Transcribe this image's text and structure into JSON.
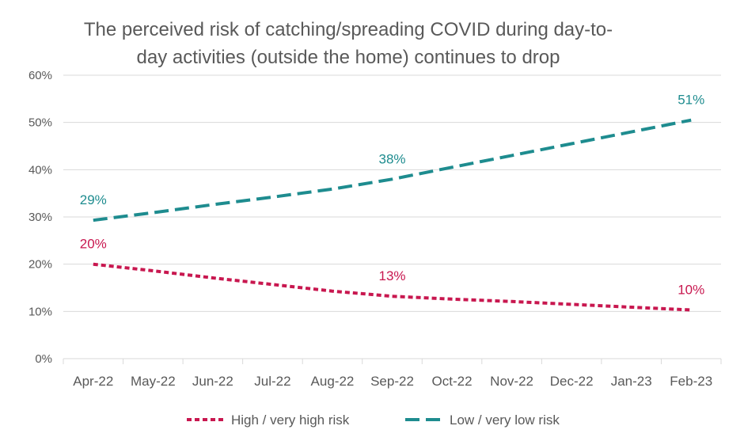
{
  "chart_data": {
    "type": "line",
    "title": "The perceived risk of catching/spreading COVID during day-to-day activities (outside the home) continues to drop",
    "title_lines": [
      "The perceived risk of catching/spreading COVID during day-to-",
      "day activities (outside the home) continues to drop"
    ],
    "categories": [
      "Apr-22",
      "May-22",
      "Jun-22",
      "Jul-22",
      "Aug-22",
      "Sep-22",
      "Oct-22",
      "Nov-22",
      "Dec-22",
      "Jan-23",
      "Feb-23"
    ],
    "y_ticks": [
      "0%",
      "10%",
      "20%",
      "30%",
      "40%",
      "50%",
      "60%"
    ],
    "ylim": [
      0,
      60
    ],
    "grid": true,
    "legend_position": "bottom",
    "series": [
      {
        "name": "High / very high risk",
        "color": "#c8174f",
        "dash": "short-dash",
        "values": [
          20,
          18.6,
          17.1,
          15.7,
          14.3,
          13.2,
          12.6,
          12.1,
          11.5,
          10.9,
          10.3
        ],
        "labels": [
          {
            "index": 0,
            "text": "20%"
          },
          {
            "index": 5,
            "text": "13%"
          },
          {
            "index": 10,
            "text": "10%"
          }
        ]
      },
      {
        "name": "Low / very low risk",
        "color": "#1e8c8f",
        "dash": "long-dash",
        "values": [
          29.3,
          30.9,
          32.6,
          34.2,
          35.9,
          38.0,
          40.5,
          43.0,
          45.5,
          48.0,
          50.5
        ],
        "labels": [
          {
            "index": 0,
            "text": "29%"
          },
          {
            "index": 5,
            "text": "38%"
          },
          {
            "index": 10,
            "text": "51%"
          }
        ]
      }
    ]
  }
}
